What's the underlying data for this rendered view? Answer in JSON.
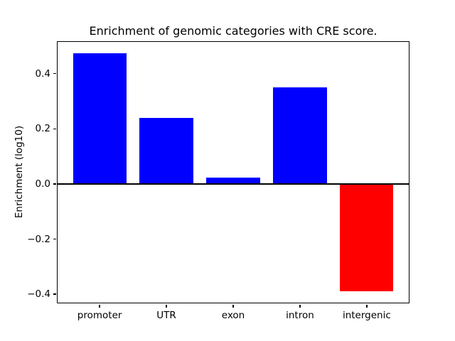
{
  "chart_data": {
    "type": "bar",
    "title": "Enrichment of genomic categories with CRE score.",
    "xlabel": "",
    "ylabel": "Enrichment (log10)",
    "categories": [
      "promoter",
      "UTR",
      "exon",
      "intron",
      "intergenic"
    ],
    "values": [
      0.475,
      0.24,
      0.022,
      0.35,
      -0.39
    ],
    "bar_colors": [
      "#0000ff",
      "#0000ff",
      "#0000ff",
      "#0000ff",
      "#ff0000"
    ],
    "positive_color": "#0000ff",
    "negative_color": "#ff0000",
    "ylim": [
      -0.433,
      0.518
    ],
    "yticks": [
      -0.4,
      -0.2,
      0.0,
      0.2,
      0.4
    ],
    "zero_line": true,
    "grid": false,
    "legend": "none",
    "background_color": "#ffffff",
    "axis_color": "#000000"
  }
}
